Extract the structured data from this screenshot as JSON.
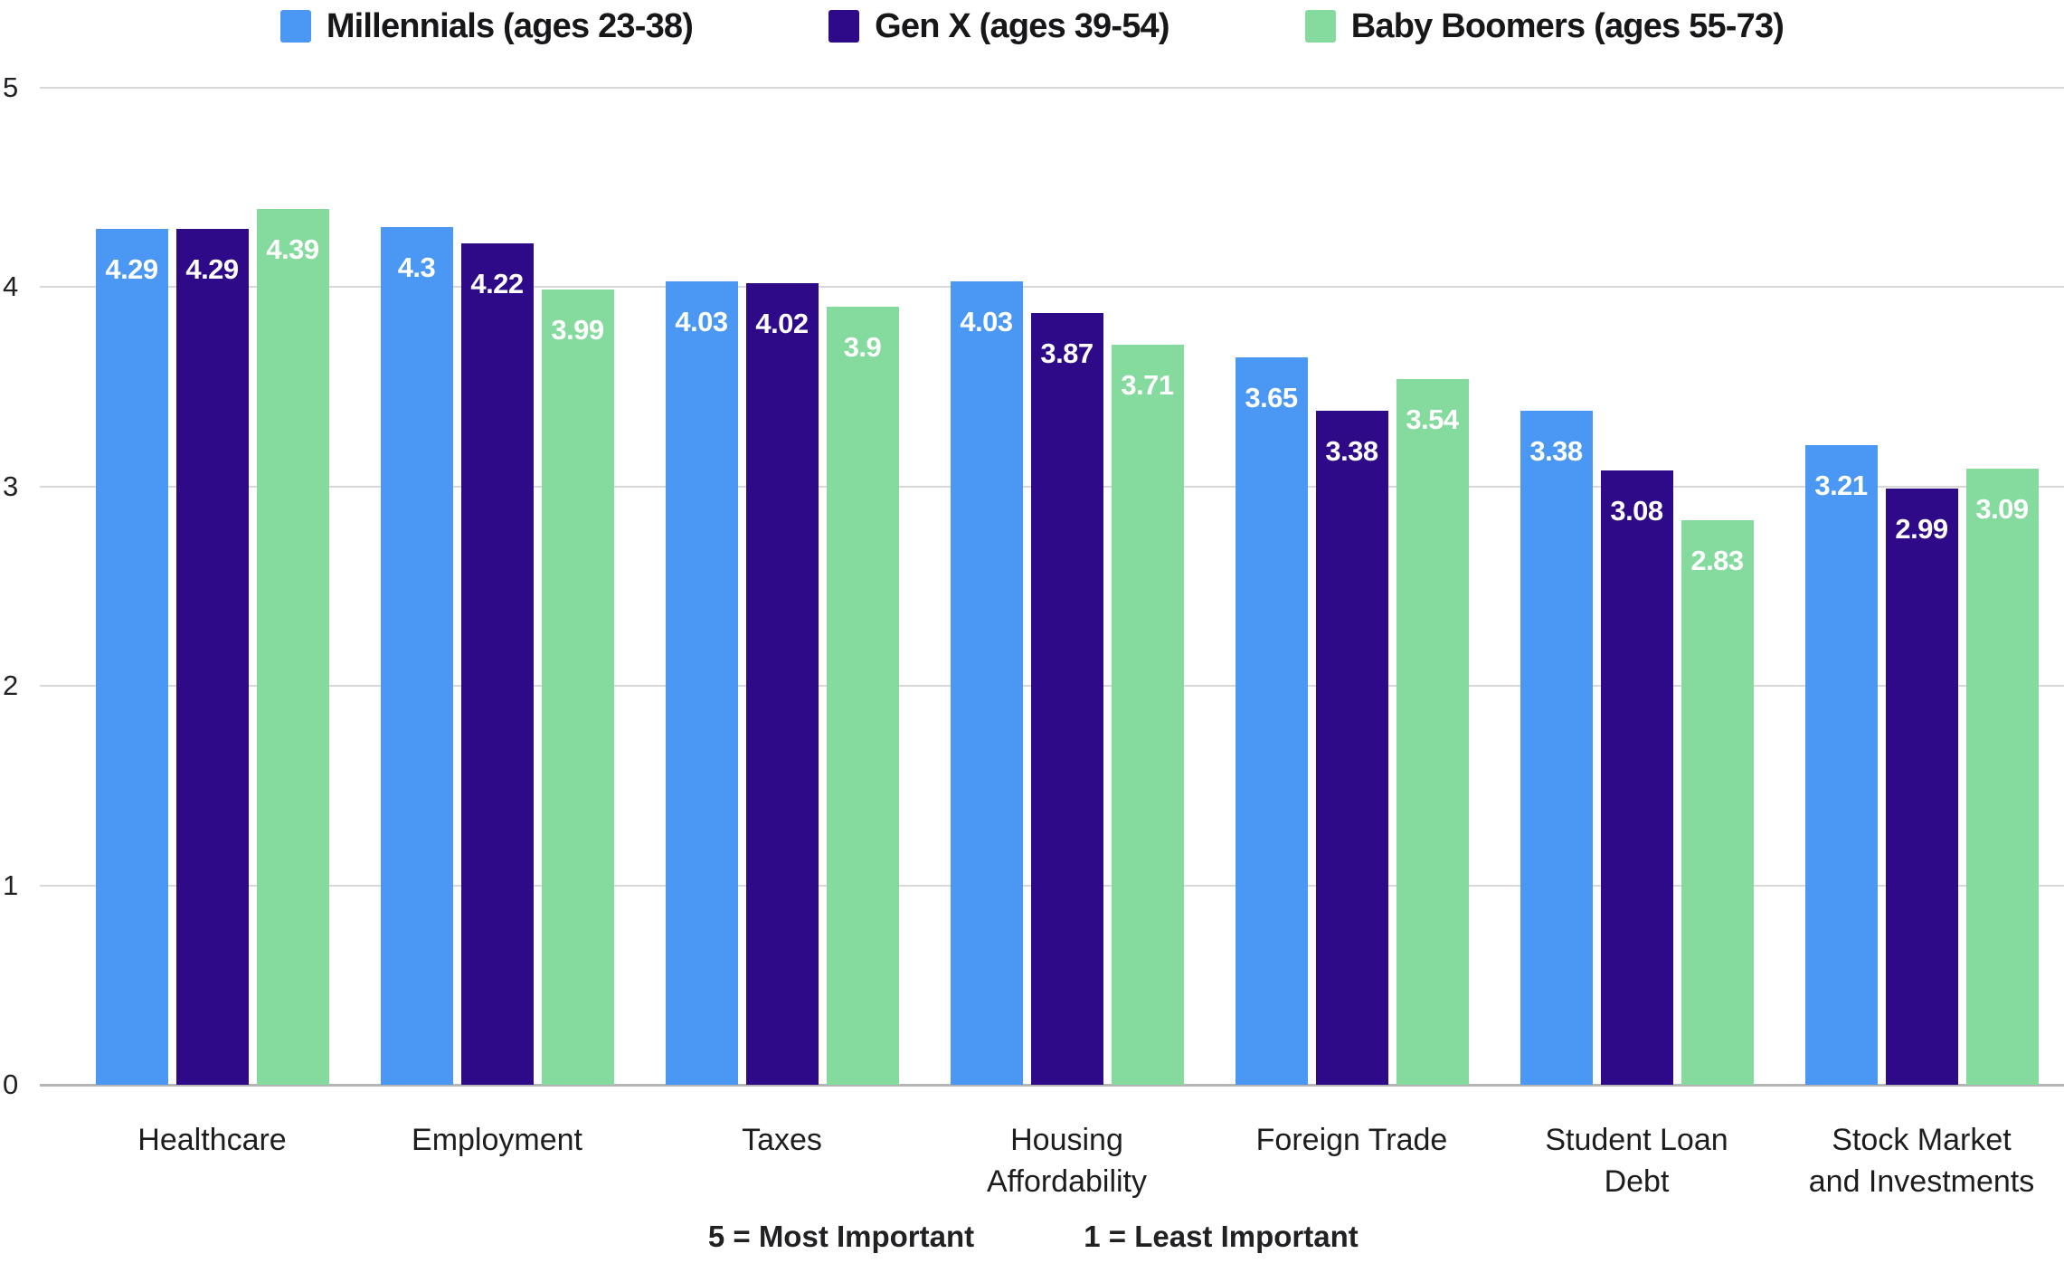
{
  "chart_data": {
    "type": "bar",
    "title": "",
    "categories": [
      "Healthcare",
      "Employment",
      "Taxes",
      "Housing Affordability",
      "Foreign Trade",
      "Student Loan Debt",
      "Stock Market and Investments"
    ],
    "series": [
      {
        "name": "Millennials (ages 23-38)",
        "color": "#4a98f4",
        "values": [
          4.29,
          4.3,
          4.03,
          4.03,
          3.65,
          3.38,
          3.21
        ]
      },
      {
        "name": "Gen X (ages 39-54)",
        "color": "#2e0a88",
        "values": [
          4.29,
          4.22,
          4.02,
          3.87,
          3.38,
          3.08,
          2.99
        ]
      },
      {
        "name": "Baby Boomers (ages 55-73)",
        "color": "#85da9e",
        "values": [
          4.39,
          3.99,
          3.9,
          3.71,
          3.54,
          2.83,
          3.09
        ]
      }
    ],
    "ylim": [
      0,
      5
    ],
    "y_ticks": [
      0,
      1,
      2,
      3,
      4,
      5
    ],
    "grid": true,
    "legend_position": "top",
    "value_labels": "white numbers inside top of each bar",
    "footnotes": [
      "5 = Most Important",
      "1 = Least Important"
    ]
  },
  "footer": {
    "note_most": "5 = Most Important",
    "note_least": "1 = Least Important"
  },
  "colors": {
    "millennials": "#4a98f4",
    "gen_x": "#2e0a88",
    "baby_boomers": "#85da9e",
    "gridline": "#d8d8d8",
    "baseline": "#b5b5b5",
    "text": "#1d1d1f",
    "bar_label": "#ffffff",
    "background": "#ffffff"
  }
}
